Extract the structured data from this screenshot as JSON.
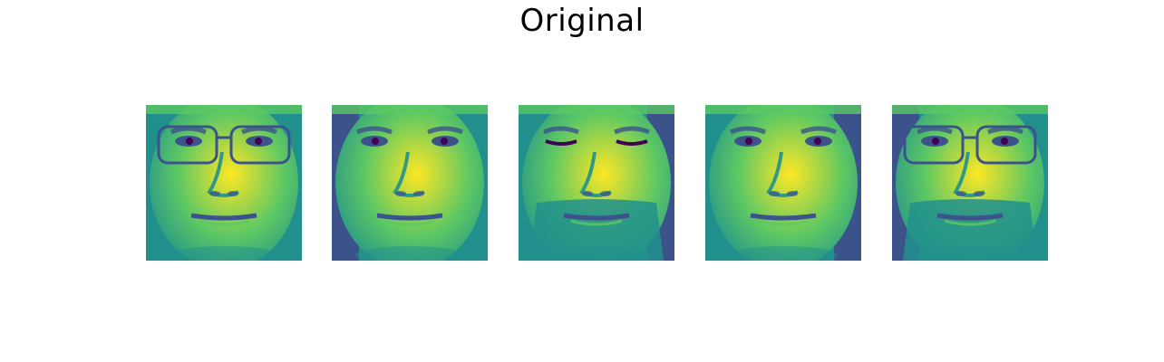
{
  "title": "Original",
  "colormap": [
    "#440154",
    "#3b528b",
    "#21908d",
    "#5dc863",
    "#fde725"
  ],
  "faces": [
    {
      "glasses": true,
      "beard": false,
      "eyes_closed": false,
      "dark_side": "none"
    },
    {
      "glasses": false,
      "beard": false,
      "eyes_closed": false,
      "dark_side": "left"
    },
    {
      "glasses": false,
      "beard": true,
      "eyes_closed": true,
      "dark_side": "right"
    },
    {
      "glasses": false,
      "beard": false,
      "eyes_closed": false,
      "dark_side": "right"
    },
    {
      "glasses": true,
      "beard": true,
      "eyes_closed": false,
      "dark_side": "left"
    }
  ]
}
